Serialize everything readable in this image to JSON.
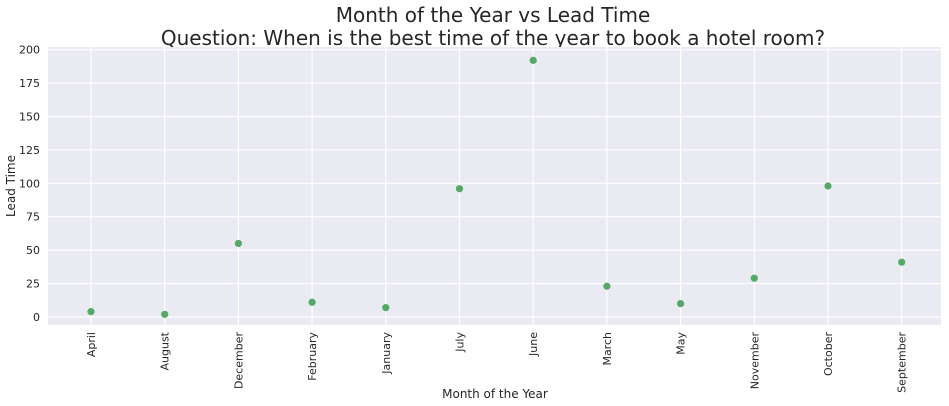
{
  "chart_data": {
    "type": "scatter",
    "title": "Month of the Year vs Lead Time",
    "subtitle": "Question: When is the best time of the year to book a hotel room?",
    "xlabel": "Month of the Year",
    "ylabel": "Lead Time",
    "categories": [
      "April",
      "August",
      "December",
      "February",
      "January",
      "July",
      "June",
      "March",
      "May",
      "November",
      "October",
      "September"
    ],
    "values": [
      4,
      2,
      55,
      11,
      7,
      96,
      192,
      23,
      10,
      29,
      98,
      41
    ],
    "ylim": [
      -6,
      202
    ],
    "yticks": [
      "0",
      "25",
      "50",
      "75",
      "100",
      "125",
      "150",
      "175",
      "200"
    ],
    "grid": true,
    "marker_color": "#55a868",
    "background_color": "#eaeaf2"
  }
}
